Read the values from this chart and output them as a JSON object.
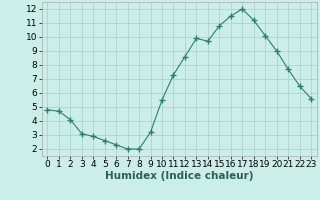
{
  "x": [
    0,
    1,
    2,
    3,
    4,
    5,
    6,
    7,
    8,
    9,
    10,
    11,
    12,
    13,
    14,
    15,
    16,
    17,
    18,
    19,
    20,
    21,
    22,
    23
  ],
  "y": [
    4.8,
    4.7,
    4.1,
    3.1,
    2.9,
    2.6,
    2.3,
    2.0,
    2.0,
    3.2,
    5.5,
    7.3,
    8.6,
    9.9,
    9.7,
    10.8,
    11.5,
    12.0,
    11.2,
    10.1,
    9.0,
    7.7,
    6.5,
    5.6
  ],
  "line_color": "#2d7d72",
  "marker": "+",
  "marker_size": 4,
  "marker_lw": 1.0,
  "background_color": "#cceee8",
  "grid_color": "#aad4ce",
  "xlabel": "Humidex (Indice chaleur)",
  "xlabel_fontsize": 7.5,
  "tick_fontsize": 6.5,
  "ylim": [
    1.5,
    12.5
  ],
  "xlim": [
    -0.5,
    23.5
  ],
  "yticks": [
    2,
    3,
    4,
    5,
    6,
    7,
    8,
    9,
    10,
    11,
    12
  ],
  "xticks": [
    0,
    1,
    2,
    3,
    4,
    5,
    6,
    7,
    8,
    9,
    10,
    11,
    12,
    13,
    14,
    15,
    16,
    17,
    18,
    19,
    20,
    21,
    22,
    23
  ]
}
